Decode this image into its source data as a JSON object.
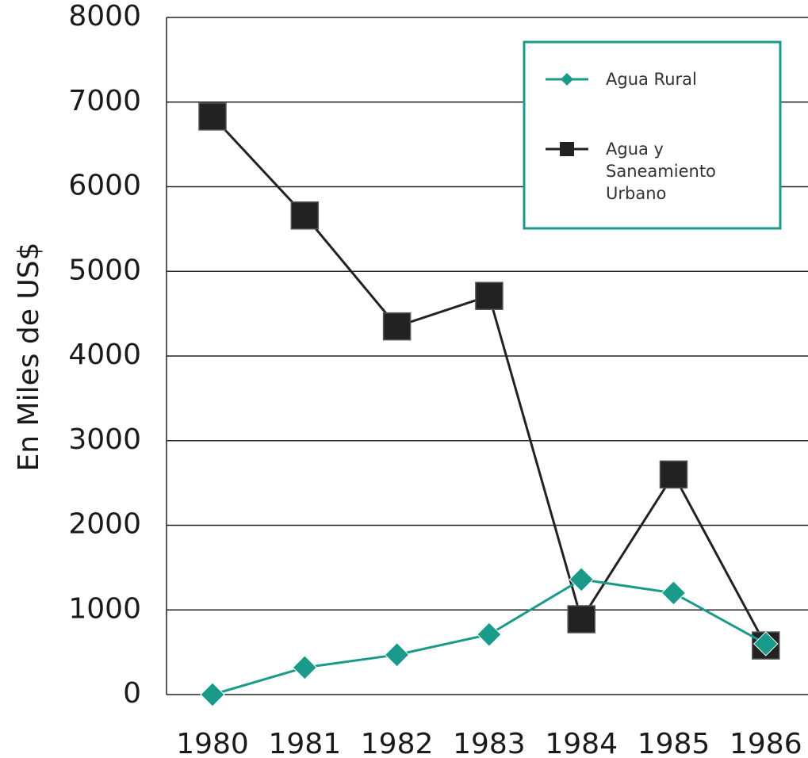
{
  "chart_data": {
    "type": "line",
    "ylabel": "En Miles de US$",
    "categories": [
      "1980",
      "1981",
      "1982",
      "1983",
      "1984",
      "1985",
      "1986"
    ],
    "series": [
      {
        "name": "Agua Rural",
        "color": "#1a9a8a",
        "marker": "diamond",
        "values": [
          0,
          320,
          470,
          710,
          1360,
          1200,
          600
        ]
      },
      {
        "name": "Agua y Saneamiento Urbano",
        "color": "#222222",
        "marker": "square",
        "values": [
          6830,
          5660,
          4350,
          4710,
          890,
          2600,
          580
        ]
      }
    ],
    "ylim": [
      0,
      8000
    ],
    "yticks": [
      0,
      1000,
      2000,
      3000,
      4000,
      5000,
      6000,
      7000,
      8000
    ],
    "grid": true,
    "legend": "upper right"
  }
}
